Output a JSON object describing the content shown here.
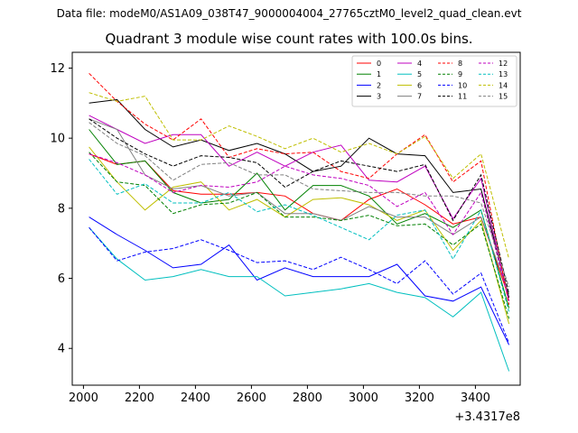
{
  "file_label": "Data file: modeM0/AS1A09_038T47_9000004004_27765cztM0_level2_quad_clean.evt",
  "chart_data": {
    "type": "line",
    "title": "Quadrant 3 module wise count rates with 100.0s bins.",
    "xlabel": "",
    "ylabel": "",
    "x_offset_label": "+3.4317e8",
    "xlim": [
      1960,
      3560
    ],
    "ylim": [
      2.95,
      12.45
    ],
    "xticks": [
      2000,
      2200,
      2400,
      2600,
      2800,
      3000,
      3200,
      3400
    ],
    "yticks": [
      4,
      6,
      8,
      10,
      12
    ],
    "legend_position": "top-right",
    "legend_columns": 4,
    "grid": false,
    "x": [
      2020,
      2120,
      2220,
      2320,
      2420,
      2520,
      2620,
      2720,
      2820,
      2920,
      3020,
      3120,
      3220,
      3320,
      3420,
      3520
    ],
    "series": [
      {
        "name": "0",
        "color": "#ff0000",
        "dashed": false,
        "values": [
          9.55,
          9.25,
          9.35,
          8.5,
          8.4,
          8.4,
          8.45,
          8.35,
          7.85,
          7.65,
          8.25,
          8.55,
          8.1,
          7.55,
          7.75,
          5.45
        ]
      },
      {
        "name": "1",
        "color": "#008000",
        "dashed": false,
        "values": [
          10.25,
          9.25,
          9.35,
          8.45,
          8.15,
          8.25,
          9.0,
          7.95,
          8.65,
          8.65,
          8.35,
          7.55,
          7.85,
          7.45,
          7.95,
          5.15
        ]
      },
      {
        "name": "2",
        "color": "#0000ff",
        "dashed": false,
        "values": [
          7.75,
          7.25,
          6.8,
          6.3,
          6.4,
          6.95,
          5.95,
          6.3,
          6.05,
          6.05,
          6.05,
          6.4,
          5.5,
          5.35,
          5.75,
          4.1
        ]
      },
      {
        "name": "3",
        "color": "#000000",
        "dashed": false,
        "values": [
          11.0,
          11.1,
          10.25,
          9.75,
          9.95,
          9.65,
          9.85,
          9.55,
          9.05,
          9.2,
          10.0,
          9.55,
          9.5,
          8.45,
          8.55,
          5.45
        ]
      },
      {
        "name": "4",
        "color": "#bf00bf",
        "dashed": false,
        "values": [
          10.65,
          10.25,
          9.85,
          10.1,
          10.1,
          9.2,
          9.6,
          9.2,
          9.6,
          9.8,
          8.8,
          8.75,
          9.2,
          7.7,
          8.85,
          5.35
        ]
      },
      {
        "name": "5",
        "color": "#00bfbf",
        "dashed": false,
        "values": [
          7.45,
          6.55,
          5.95,
          6.05,
          6.25,
          6.05,
          6.05,
          5.5,
          5.6,
          5.7,
          5.85,
          5.6,
          5.45,
          4.9,
          5.6,
          3.35
        ]
      },
      {
        "name": "6",
        "color": "#bfbf00",
        "dashed": false,
        "values": [
          9.75,
          8.75,
          7.95,
          8.6,
          8.75,
          7.95,
          8.25,
          7.75,
          8.25,
          8.3,
          8.1,
          7.65,
          7.95,
          6.8,
          7.65,
          4.7
        ]
      },
      {
        "name": "7",
        "color": "#808080",
        "dashed": false,
        "values": [
          10.55,
          10.25,
          8.95,
          8.55,
          8.65,
          8.35,
          8.45,
          7.85,
          7.85,
          7.65,
          8.05,
          7.75,
          7.75,
          7.25,
          7.75,
          5.55
        ]
      },
      {
        "name": "8",
        "color": "#ff0000",
        "dashed": true,
        "values": [
          11.85,
          11.05,
          10.4,
          9.95,
          10.55,
          9.45,
          9.7,
          9.55,
          9.6,
          9.05,
          8.85,
          9.55,
          10.1,
          8.75,
          9.35,
          5.25
        ]
      },
      {
        "name": "9",
        "color": "#008000",
        "dashed": true,
        "values": [
          9.6,
          8.75,
          8.65,
          7.85,
          8.1,
          8.15,
          8.45,
          7.75,
          7.75,
          7.65,
          7.8,
          7.5,
          7.55,
          6.95,
          7.55,
          4.85
        ]
      },
      {
        "name": "10",
        "color": "#0000ff",
        "dashed": true,
        "values": [
          7.45,
          6.5,
          6.75,
          6.85,
          7.1,
          6.8,
          6.45,
          6.5,
          6.25,
          6.6,
          6.25,
          5.85,
          6.5,
          5.55,
          6.15,
          4.15
        ]
      },
      {
        "name": "11",
        "color": "#000000",
        "dashed": true,
        "values": [
          10.55,
          10.0,
          9.55,
          9.2,
          9.5,
          9.45,
          9.3,
          8.6,
          9.05,
          9.35,
          9.2,
          9.05,
          9.25,
          7.65,
          8.95,
          5.55
        ]
      },
      {
        "name": "12",
        "color": "#bf00bf",
        "dashed": true,
        "values": [
          9.55,
          9.3,
          8.95,
          8.45,
          8.65,
          8.6,
          8.75,
          9.2,
          8.95,
          8.85,
          8.65,
          8.05,
          8.45,
          7.25,
          8.45,
          5.35
        ]
      },
      {
        "name": "13",
        "color": "#00bfbf",
        "dashed": true,
        "values": [
          9.4,
          8.4,
          8.7,
          8.15,
          8.15,
          8.45,
          7.9,
          8.1,
          7.8,
          7.45,
          7.1,
          7.8,
          7.95,
          6.55,
          7.95,
          5.05
        ]
      },
      {
        "name": "14",
        "color": "#bfbf00",
        "dashed": true,
        "values": [
          11.3,
          11.05,
          11.2,
          9.95,
          9.95,
          10.35,
          10.05,
          9.7,
          10.0,
          9.6,
          9.85,
          9.55,
          10.05,
          8.85,
          9.55,
          6.55
        ]
      },
      {
        "name": "15",
        "color": "#808080",
        "dashed": true,
        "values": [
          10.45,
          9.85,
          9.5,
          8.8,
          9.25,
          9.3,
          8.95,
          8.95,
          8.55,
          8.5,
          8.45,
          8.45,
          8.35,
          8.35,
          8.15,
          5.75
        ]
      }
    ]
  }
}
